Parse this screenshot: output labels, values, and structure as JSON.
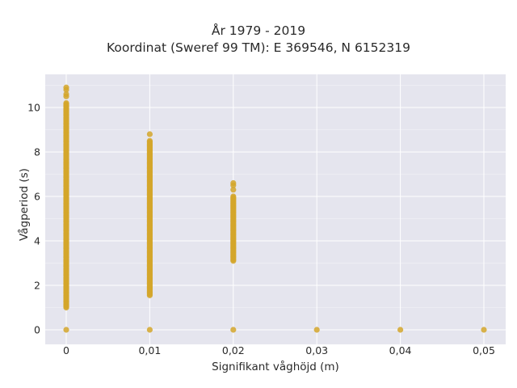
{
  "chart_data": {
    "type": "scatter",
    "title": "År 1979 - 2019",
    "subtitle": "Koordinat (Sweref 99 TM): E 369546, N 6152319",
    "xlabel": "Signifikant våghöjd (m)",
    "ylabel": "Vågperiod (s)",
    "x_ticks": [
      "0",
      "0,01",
      "0,02",
      "0,03",
      "0,04",
      "0,05"
    ],
    "y_ticks": [
      "0",
      "2",
      "4",
      "6",
      "8",
      "10"
    ],
    "xlim": [
      -0.0013,
      0.0052
    ],
    "ylim": [
      -0.75,
      11.3
    ],
    "x_tick_values": [
      0,
      0.01,
      0.02,
      0.03,
      0.04,
      0.05
    ],
    "y_tick_values": [
      0,
      2,
      4,
      6,
      8,
      10
    ],
    "grid": true,
    "marker_color": "#D4A62A",
    "point_groups": [
      {
        "x": 0.0,
        "y_min": 1.0,
        "y_max": 10.2,
        "extra_y": [
          10.5,
          10.6,
          10.8,
          10.9,
          0
        ]
      },
      {
        "x": 0.01,
        "y_min": 1.55,
        "y_max": 8.5,
        "extra_y": [
          8.8,
          0
        ]
      },
      {
        "x": 0.02,
        "y_min": 3.1,
        "y_max": 6.0,
        "extra_y": [
          6.3,
          6.5,
          6.6,
          0
        ]
      },
      {
        "x": 0.03,
        "y_min": null,
        "y_max": null,
        "extra_y": [
          0
        ]
      },
      {
        "x": 0.04,
        "y_min": null,
        "y_max": null,
        "extra_y": [
          0
        ]
      },
      {
        "x": 0.05,
        "y_min": null,
        "y_max": null,
        "extra_y": [
          0
        ]
      }
    ]
  }
}
